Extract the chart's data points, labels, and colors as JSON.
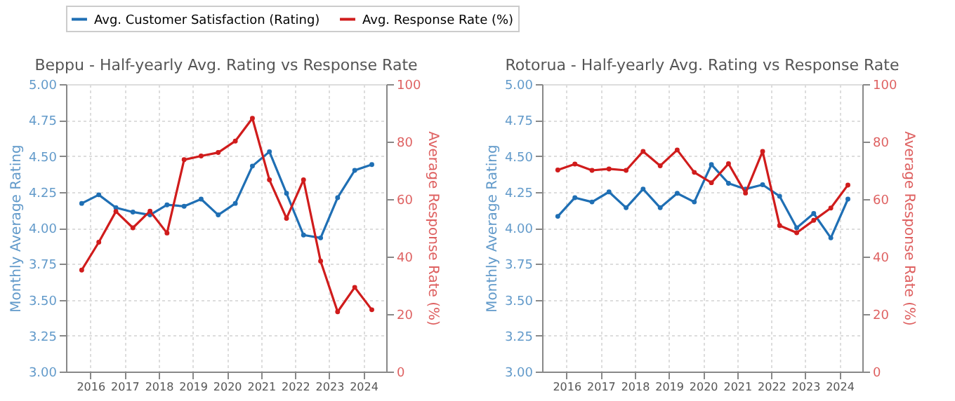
{
  "chart_data": [
    {
      "type": "line",
      "title": "Beppu - Half-yearly Avg. Rating vs Response Rate",
      "ylabel": "Monthly Average Rating",
      "y2label": "Average Response Rate (%)",
      "x": [
        "2015-09-30",
        "2016-03-31",
        "2016-09-30",
        "2017-03-31",
        "2017-09-30",
        "2018-03-31",
        "2018-09-30",
        "2019-03-31",
        "2019-09-30",
        "2020-03-31",
        "2020-09-30",
        "2021-03-31",
        "2021-09-30",
        "2022-03-31",
        "2022-09-30",
        "2023-03-31",
        "2023-09-30",
        "2024-03-31"
      ],
      "series": [
        {
          "name": "Avg. Customer Satisfaction (Rating)",
          "color": "#1f6fb4",
          "values": [
            4.17,
            4.23,
            4.14,
            4.11,
            4.09,
            4.16,
            4.15,
            4.2,
            4.09,
            4.17,
            4.43,
            4.53,
            4.24,
            3.95,
            3.93,
            4.21,
            4.4,
            4.44
          ]
        },
        {
          "name": "Avg. Response Rate (%)",
          "color": "#d01c1c",
          "axis": "y2",
          "values": [
            35.3,
            45,
            55.7,
            50,
            55.8,
            48.2,
            73.7,
            75,
            76.2,
            80.2,
            88.1,
            66.7,
            53.3,
            66.7,
            38.4,
            20.8,
            29.3,
            21.5
          ]
        }
      ],
      "xlim": [
        "2015-04-15",
        "2024-09-01"
      ],
      "xticks": [
        "2016",
        "2017",
        "2018",
        "2019",
        "2020",
        "2021",
        "2022",
        "2023",
        "2024"
      ],
      "ylim": [
        3,
        5
      ],
      "yticks": [
        {
          "value": 3,
          "label": "3.00"
        },
        3.25,
        {
          "value": 3.5,
          "label": "3.50"
        },
        3.75,
        {
          "value": 4,
          "label": "4.00"
        },
        4.25,
        {
          "value": 4.5,
          "label": "4.50"
        },
        4.75,
        {
          "value": 5,
          "label": "5.00"
        }
      ],
      "y2lim": [
        0,
        100
      ],
      "y2ticks": [
        0,
        20,
        40,
        60,
        80,
        100
      ],
      "grid": true,
      "legend": "top",
      "marker": "circle",
      "line_style": "solid"
    },
    {
      "type": "line",
      "title": "Rotorua - Half-yearly Avg. Rating vs Response Rate",
      "ylabel": "Monthly Average Rating",
      "y2label": "Average Response Rate (%)",
      "x": [
        "2015-09-30",
        "2016-03-31",
        "2016-09-30",
        "2017-03-31",
        "2017-09-30",
        "2018-03-31",
        "2018-09-30",
        "2019-03-31",
        "2019-09-30",
        "2020-03-31",
        "2020-09-30",
        "2021-03-31",
        "2021-09-30",
        "2022-03-31",
        "2022-09-30",
        "2023-03-31",
        "2023-09-30",
        "2024-03-31"
      ],
      "series": [
        {
          "name": "Avg. Customer Satisfaction (Rating)",
          "color": "#1f6fb4",
          "values": [
            4.08,
            4.21,
            4.18,
            4.25,
            4.14,
            4.27,
            4.14,
            4.24,
            4.18,
            4.44,
            4.31,
            4.27,
            4.3,
            4.22,
            4.0,
            4.1,
            3.93,
            4.2
          ]
        },
        {
          "name": "Avg. Response Rate (%)",
          "color": "#d01c1c",
          "axis": "y2",
          "values": [
            70.1,
            72.2,
            70,
            70.5,
            70,
            76.6,
            71.6,
            77.1,
            69.3,
            65.7,
            72.3,
            62.1,
            76.6,
            50.8,
            48.3,
            52.6,
            56.9,
            64.9
          ]
        }
      ],
      "xlim": [
        "2015-04-15",
        "2024-09-01"
      ],
      "xticks": [
        "2016",
        "2017",
        "2018",
        "2019",
        "2020",
        "2021",
        "2022",
        "2023",
        "2024"
      ],
      "ylim": [
        3,
        5
      ],
      "yticks": [
        {
          "value": 3,
          "label": "3.00"
        },
        3.25,
        {
          "value": 3.5,
          "label": "3.50"
        },
        3.75,
        {
          "value": 4,
          "label": "4.00"
        },
        4.25,
        {
          "value": 4.5,
          "label": "4.50"
        },
        4.75,
        {
          "value": 5,
          "label": "5.00"
        }
      ],
      "y2lim": [
        0,
        100
      ],
      "y2ticks": [
        0,
        20,
        40,
        60,
        80,
        100
      ],
      "grid": true,
      "legend": "top",
      "marker": "circle",
      "line_style": "solid"
    }
  ]
}
